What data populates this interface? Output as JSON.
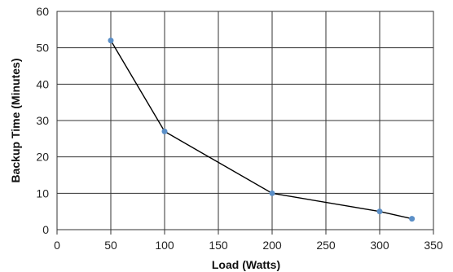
{
  "chart_data": {
    "type": "line",
    "title": "",
    "xlabel": "Load (Watts)",
    "ylabel": "Backup Time (Minutes)",
    "xlim": [
      0,
      350
    ],
    "ylim": [
      0,
      60
    ],
    "x_ticks": [
      0,
      50,
      100,
      150,
      200,
      250,
      300,
      350
    ],
    "y_ticks": [
      0,
      10,
      20,
      30,
      40,
      50,
      60
    ],
    "x_tick_labels": [
      "0",
      "50",
      "100",
      "150",
      "200",
      "250",
      "300",
      "350"
    ],
    "y_tick_labels": [
      "0",
      "10",
      "20",
      "30",
      "40",
      "50",
      "60"
    ],
    "grid": true,
    "legend": "none",
    "series": [
      {
        "x": [
          50,
          100,
          200,
          300,
          330
        ],
        "y": [
          52,
          27,
          10,
          5,
          3
        ],
        "line_color": "#000000",
        "marker_color": "#5b8fc7"
      }
    ],
    "grid_color": "#333333",
    "axis_color": "#333333"
  }
}
